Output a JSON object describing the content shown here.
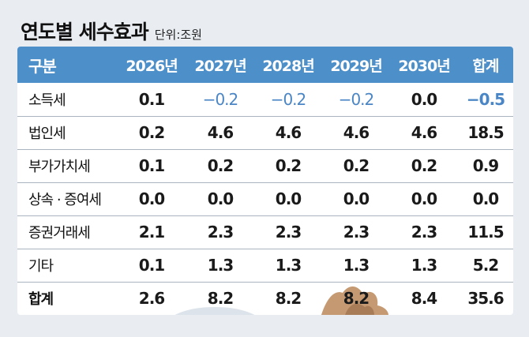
{
  "title": "연도별 세수효과",
  "unit": "단위:조원",
  "table": {
    "headers": [
      "구분",
      "2026년",
      "2027년",
      "2028년",
      "2029년",
      "2030년",
      "합계"
    ],
    "rows": [
      {
        "label": "소득세",
        "values": [
          "0.1",
          "−0.2",
          "−0.2",
          "−0.2",
          "0.0",
          "−0.5"
        ]
      },
      {
        "label": "법인세",
        "values": [
          "0.2",
          "4.6",
          "4.6",
          "4.6",
          "4.6",
          "18.5"
        ]
      },
      {
        "label": "부가가치세",
        "values": [
          "0.1",
          "0.2",
          "0.2",
          "0.2",
          "0.2",
          "0.9"
        ]
      },
      {
        "label": "상속 · 증여세",
        "values": [
          "0.0",
          "0.0",
          "0.0",
          "0.0",
          "0.0",
          "0.0"
        ]
      },
      {
        "label": "증권거래세",
        "values": [
          "2.1",
          "2.3",
          "2.3",
          "2.3",
          "2.3",
          "11.5"
        ]
      },
      {
        "label": "기타",
        "values": [
          "0.1",
          "1.3",
          "1.3",
          "1.3",
          "1.3",
          "5.2"
        ]
      },
      {
        "label": "합계",
        "values": [
          "2.6",
          "8.2",
          "8.2",
          "8.2",
          "8.4",
          "35.6"
        ]
      }
    ]
  },
  "colors": {
    "header_bg": "#4d8fc9",
    "negative_text": "#4a86c5",
    "page_bg": "#e9edf2"
  }
}
